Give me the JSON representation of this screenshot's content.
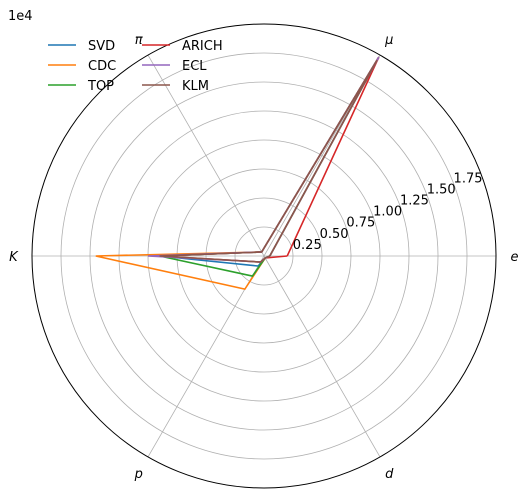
{
  "chart_data": {
    "type": "radar",
    "title": "",
    "offset_label": "1e4",
    "categories": [
      "e",
      "μ",
      "π",
      "K",
      "p",
      "d"
    ],
    "rlim": [
      0,
      2.0
    ],
    "r_ticks": [
      0.25,
      0.5,
      0.75,
      1.0,
      1.25,
      1.5,
      1.75,
      2.0
    ],
    "r_tick_labels": [
      "0.25",
      "0.50",
      "0.75",
      "1.00",
      "1.25",
      "1.50",
      "1.75"
    ],
    "grid": true,
    "legend_placement": "top-left",
    "series": [
      {
        "name": "SVD",
        "color": "#1f77b4",
        "values": [
          0.05,
          1.98,
          0.04,
          0.9,
          0.1,
          0.02
        ]
      },
      {
        "name": "CDC",
        "color": "#ff7f0e",
        "values": [
          0.05,
          1.98,
          0.04,
          1.45,
          0.33,
          0.02
        ]
      },
      {
        "name": "TOP",
        "color": "#2ca02c",
        "values": [
          0.05,
          1.98,
          0.04,
          0.9,
          0.2,
          0.02
        ]
      },
      {
        "name": "ARICH",
        "color": "#d62728",
        "values": [
          0.2,
          1.98,
          0.04,
          0.9,
          0.06,
          0.02
        ]
      },
      {
        "name": "ECL",
        "color": "#9467bd",
        "values": [
          0.05,
          1.98,
          0.04,
          1.0,
          0.06,
          0.02
        ]
      },
      {
        "name": "KLM",
        "color": "#8c564b",
        "values": [
          0.05,
          1.95,
          0.04,
          0.9,
          0.06,
          0.02
        ]
      }
    ]
  }
}
